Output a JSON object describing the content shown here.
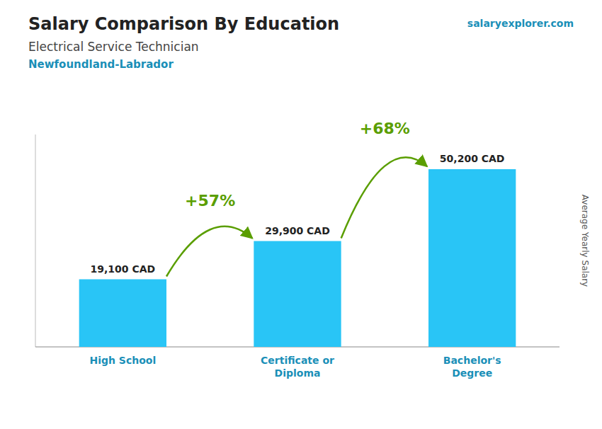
{
  "chart_data": {
    "type": "bar",
    "title": "Salary Comparison By Education",
    "subtitle": [
      "Electrical Service Technician",
      "Newfoundland-Labrador"
    ],
    "watermark": "salaryexplorer.com",
    "ylabel": "Average Yearly Salary",
    "categories": [
      "High School",
      "Certificate or\nDiploma",
      "Bachelor's\nDegree"
    ],
    "values": [
      19100,
      29900,
      50200
    ],
    "value_labels": [
      "19,100 CAD",
      "29,900 CAD",
      "50,200 CAD"
    ],
    "data_labels": true,
    "color": "#29c5f6",
    "annotations": [
      "+57%",
      "+68%"
    ],
    "ylim": [
      0,
      60000
    ],
    "tick_labels": false,
    "grid": false
  }
}
